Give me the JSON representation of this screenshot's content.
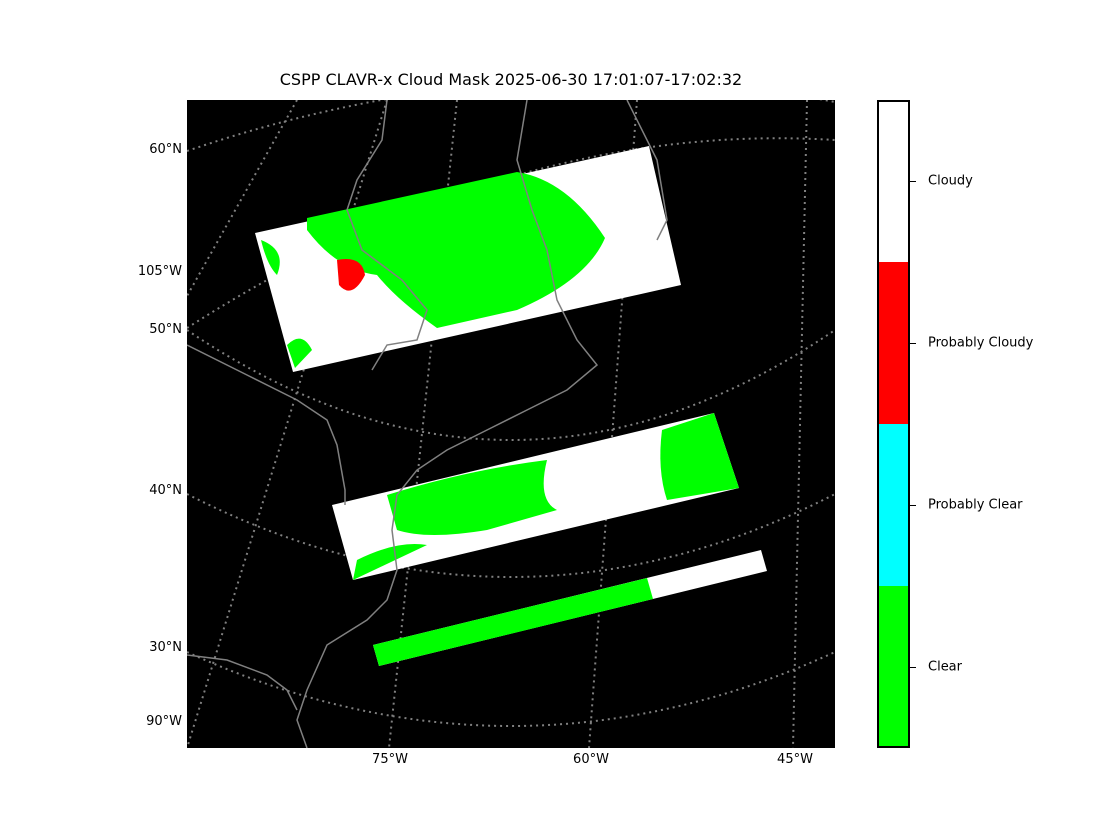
{
  "title": "CSPP CLAVR-x Cloud Mask 2025-06-30 17:01:07-17:02:32",
  "lat_labels": [
    "60°N",
    "105°W",
    "50°N",
    "40°N",
    "30°N",
    "90°W"
  ],
  "lon_labels": [
    "75°W",
    "60°W",
    "45°W"
  ],
  "colorbar": {
    "categories": [
      {
        "label": "Cloudy",
        "color": "#ffffff"
      },
      {
        "label": "Probably Cloudy",
        "color": "#ff0000"
      },
      {
        "label": "Probably Clear",
        "color": "#00ffff"
      },
      {
        "label": "Clear",
        "color": "#00ff00"
      }
    ]
  },
  "colors": {
    "background": "#000000",
    "coastline": "#808080",
    "gridline": "#808080"
  }
}
